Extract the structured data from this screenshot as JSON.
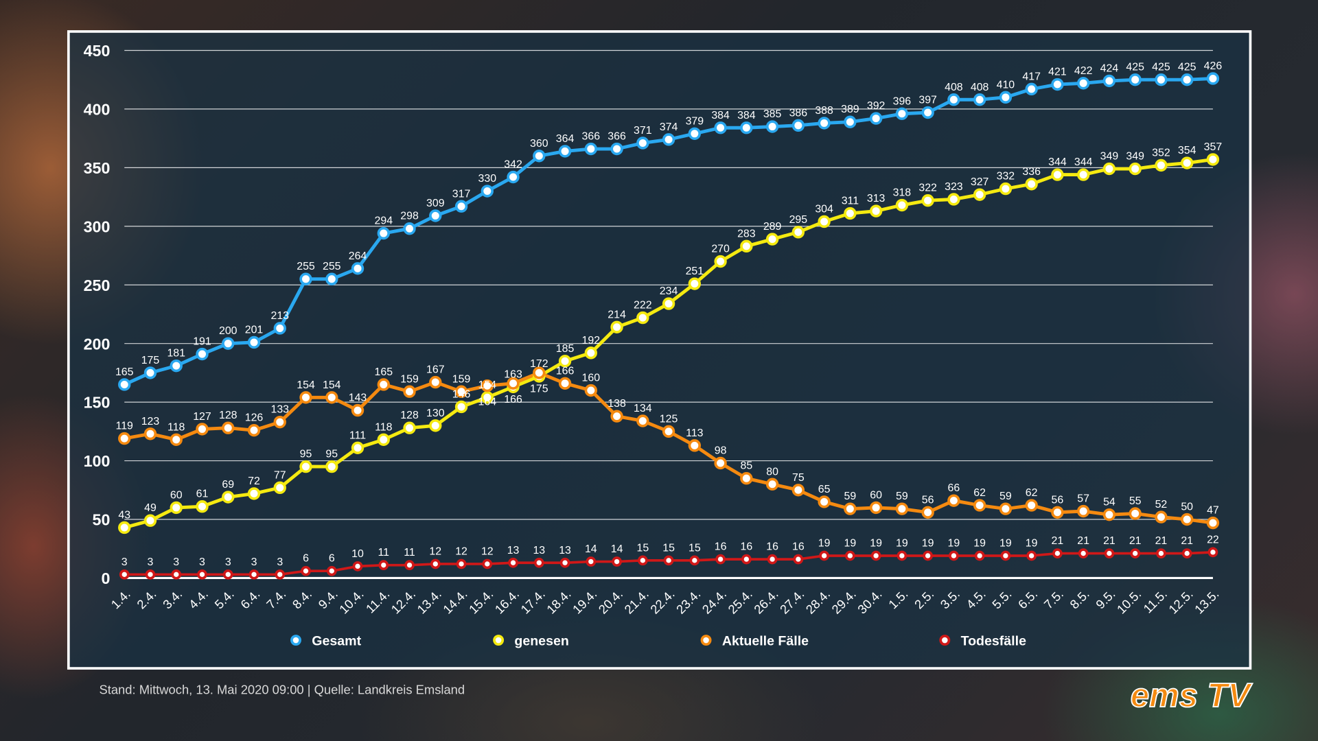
{
  "chart_data": {
    "type": "line",
    "categories": [
      "1.4.",
      "2.4.",
      "3.4.",
      "4.4.",
      "5.4.",
      "6.4.",
      "7.4.",
      "8.4.",
      "9.4.",
      "10.4.",
      "11.4.",
      "12.4.",
      "13.4.",
      "14.4.",
      "15.4.",
      "16.4.",
      "17.4.",
      "18.4.",
      "19.4.",
      "20.4.",
      "21.4.",
      "22.4.",
      "23.4.",
      "24.4.",
      "25.4.",
      "26.4.",
      "27.4.",
      "28.4.",
      "29.4.",
      "30.4.",
      "1.5.",
      "2.5.",
      "3.5.",
      "4.5.",
      "5.5.",
      "6.5.",
      "7.5.",
      "8.5.",
      "9.5.",
      "10.5.",
      "11.5.",
      "12.5.",
      "13.5."
    ],
    "ylim": [
      0,
      450
    ],
    "yticks": [
      0,
      50,
      100,
      150,
      200,
      250,
      300,
      350,
      400,
      450
    ],
    "grid": true,
    "legend": "bottom",
    "series": [
      {
        "name": "Gesamt",
        "color": "#2aa8f0",
        "values": [
          165,
          175,
          181,
          191,
          200,
          201,
          213,
          255,
          255,
          264,
          294,
          298,
          309,
          317,
          330,
          342,
          360,
          364,
          366,
          366,
          371,
          374,
          379,
          384,
          384,
          385,
          386,
          388,
          389,
          392,
          396,
          397,
          408,
          408,
          410,
          417,
          421,
          422,
          424,
          425,
          425,
          425,
          426
        ]
      },
      {
        "name": "genesen",
        "color": "#f5ea10",
        "values": [
          43,
          49,
          60,
          61,
          69,
          72,
          77,
          95,
          95,
          111,
          118,
          128,
          130,
          146,
          154,
          163,
          172,
          185,
          192,
          214,
          222,
          234,
          251,
          270,
          283,
          289,
          295,
          304,
          311,
          313,
          318,
          322,
          323,
          327,
          332,
          336,
          344,
          344,
          349,
          349,
          352,
          354,
          357
        ]
      },
      {
        "name": "Aktuelle Fälle",
        "color": "#f58a10",
        "values": [
          119,
          123,
          118,
          127,
          128,
          126,
          133,
          154,
          154,
          143,
          165,
          159,
          167,
          159,
          164,
          166,
          175,
          166,
          160,
          138,
          134,
          125,
          113,
          98,
          85,
          80,
          75,
          65,
          59,
          60,
          59,
          56,
          66,
          62,
          59,
          62,
          56,
          57,
          54,
          55,
          52,
          50,
          47
        ]
      },
      {
        "name": "Todesfälle",
        "color": "#d01818",
        "values": [
          3,
          3,
          3,
          3,
          3,
          3,
          3,
          6,
          6,
          10,
          11,
          11,
          12,
          12,
          12,
          13,
          13,
          13,
          14,
          14,
          15,
          15,
          15,
          16,
          16,
          16,
          16,
          19,
          19,
          19,
          19,
          19,
          19,
          19,
          19,
          19,
          21,
          21,
          21,
          21,
          21,
          21,
          22
        ]
      }
    ]
  },
  "footer": "Stand:  Mittwoch, 13. Mai 2020 09:00  |  Quelle:  Landkreis Emsland",
  "logo": "ems TV"
}
